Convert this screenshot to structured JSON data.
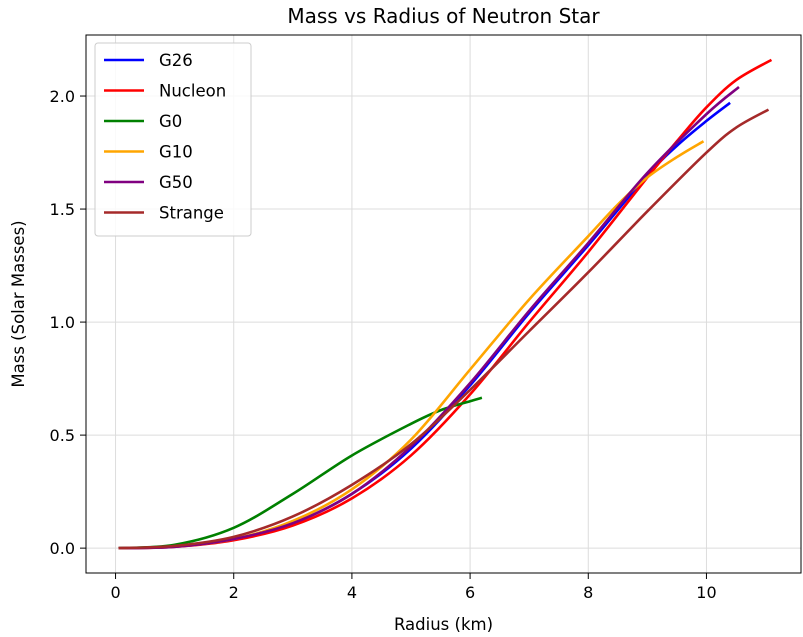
{
  "chart_data": {
    "type": "line",
    "title": "Mass vs Radius of Neutron Star",
    "xlabel": "Radius (km)",
    "ylabel": "Mass (Solar Masses)",
    "xlim": [
      -0.5,
      11.6
    ],
    "ylim": [
      -0.11,
      2.27
    ],
    "xticks": [
      0,
      2,
      4,
      6,
      8,
      10
    ],
    "yticks": [
      0.0,
      0.5,
      1.0,
      1.5,
      2.0
    ],
    "xtick_labels": [
      "0",
      "2",
      "4",
      "6",
      "8",
      "10"
    ],
    "ytick_labels": [
      "0.0",
      "0.5",
      "1.0",
      "1.5",
      "2.0"
    ],
    "grid": true,
    "legend_position": "top-left",
    "series": [
      {
        "name": "G26",
        "color": "#0000ff",
        "x": [
          0.05,
          1.0,
          2.0,
          3.0,
          4.0,
          5.0,
          6.0,
          7.0,
          8.0,
          9.0,
          9.5,
          10.0,
          10.4
        ],
        "y": [
          0.0,
          0.007,
          0.04,
          0.11,
          0.24,
          0.44,
          0.72,
          1.04,
          1.34,
          1.65,
          1.78,
          1.89,
          1.97
        ]
      },
      {
        "name": "Nucleon",
        "color": "#ff0000",
        "x": [
          0.05,
          1.0,
          2.0,
          3.0,
          4.0,
          5.0,
          6.0,
          7.0,
          8.0,
          9.0,
          9.5,
          10.0,
          10.5,
          11.1
        ],
        "y": [
          0.0,
          0.006,
          0.035,
          0.1,
          0.22,
          0.41,
          0.68,
          1.0,
          1.31,
          1.64,
          1.8,
          1.95,
          2.07,
          2.16
        ]
      },
      {
        "name": "G0",
        "color": "#008000",
        "x": [
          0.05,
          1.0,
          2.0,
          3.0,
          4.0,
          5.0,
          5.5,
          6.0,
          6.2
        ],
        "y": [
          0.0,
          0.015,
          0.09,
          0.24,
          0.41,
          0.55,
          0.61,
          0.65,
          0.665
        ]
      },
      {
        "name": "G10",
        "color": "#ffa500",
        "x": [
          0.05,
          1.0,
          2.0,
          3.0,
          4.0,
          5.0,
          6.0,
          7.0,
          8.0,
          8.5,
          9.0,
          9.5,
          9.95
        ],
        "y": [
          0.0,
          0.007,
          0.04,
          0.12,
          0.26,
          0.48,
          0.79,
          1.1,
          1.38,
          1.52,
          1.64,
          1.73,
          1.8
        ]
      },
      {
        "name": "G50",
        "color": "#800080",
        "x": [
          0.05,
          1.0,
          2.0,
          3.0,
          4.0,
          5.0,
          6.0,
          7.0,
          8.0,
          9.0,
          10.0,
          10.55
        ],
        "y": [
          0.0,
          0.006,
          0.04,
          0.11,
          0.24,
          0.45,
          0.73,
          1.05,
          1.35,
          1.66,
          1.92,
          2.04
        ]
      },
      {
        "name": "Strange",
        "color": "#a52a2a",
        "x": [
          0.05,
          1.0,
          2.0,
          3.0,
          4.0,
          5.0,
          6.0,
          7.0,
          8.0,
          9.0,
          10.0,
          10.5,
          11.05
        ],
        "y": [
          0.0,
          0.01,
          0.05,
          0.14,
          0.28,
          0.46,
          0.7,
          0.96,
          1.22,
          1.49,
          1.75,
          1.86,
          1.94
        ]
      }
    ]
  }
}
